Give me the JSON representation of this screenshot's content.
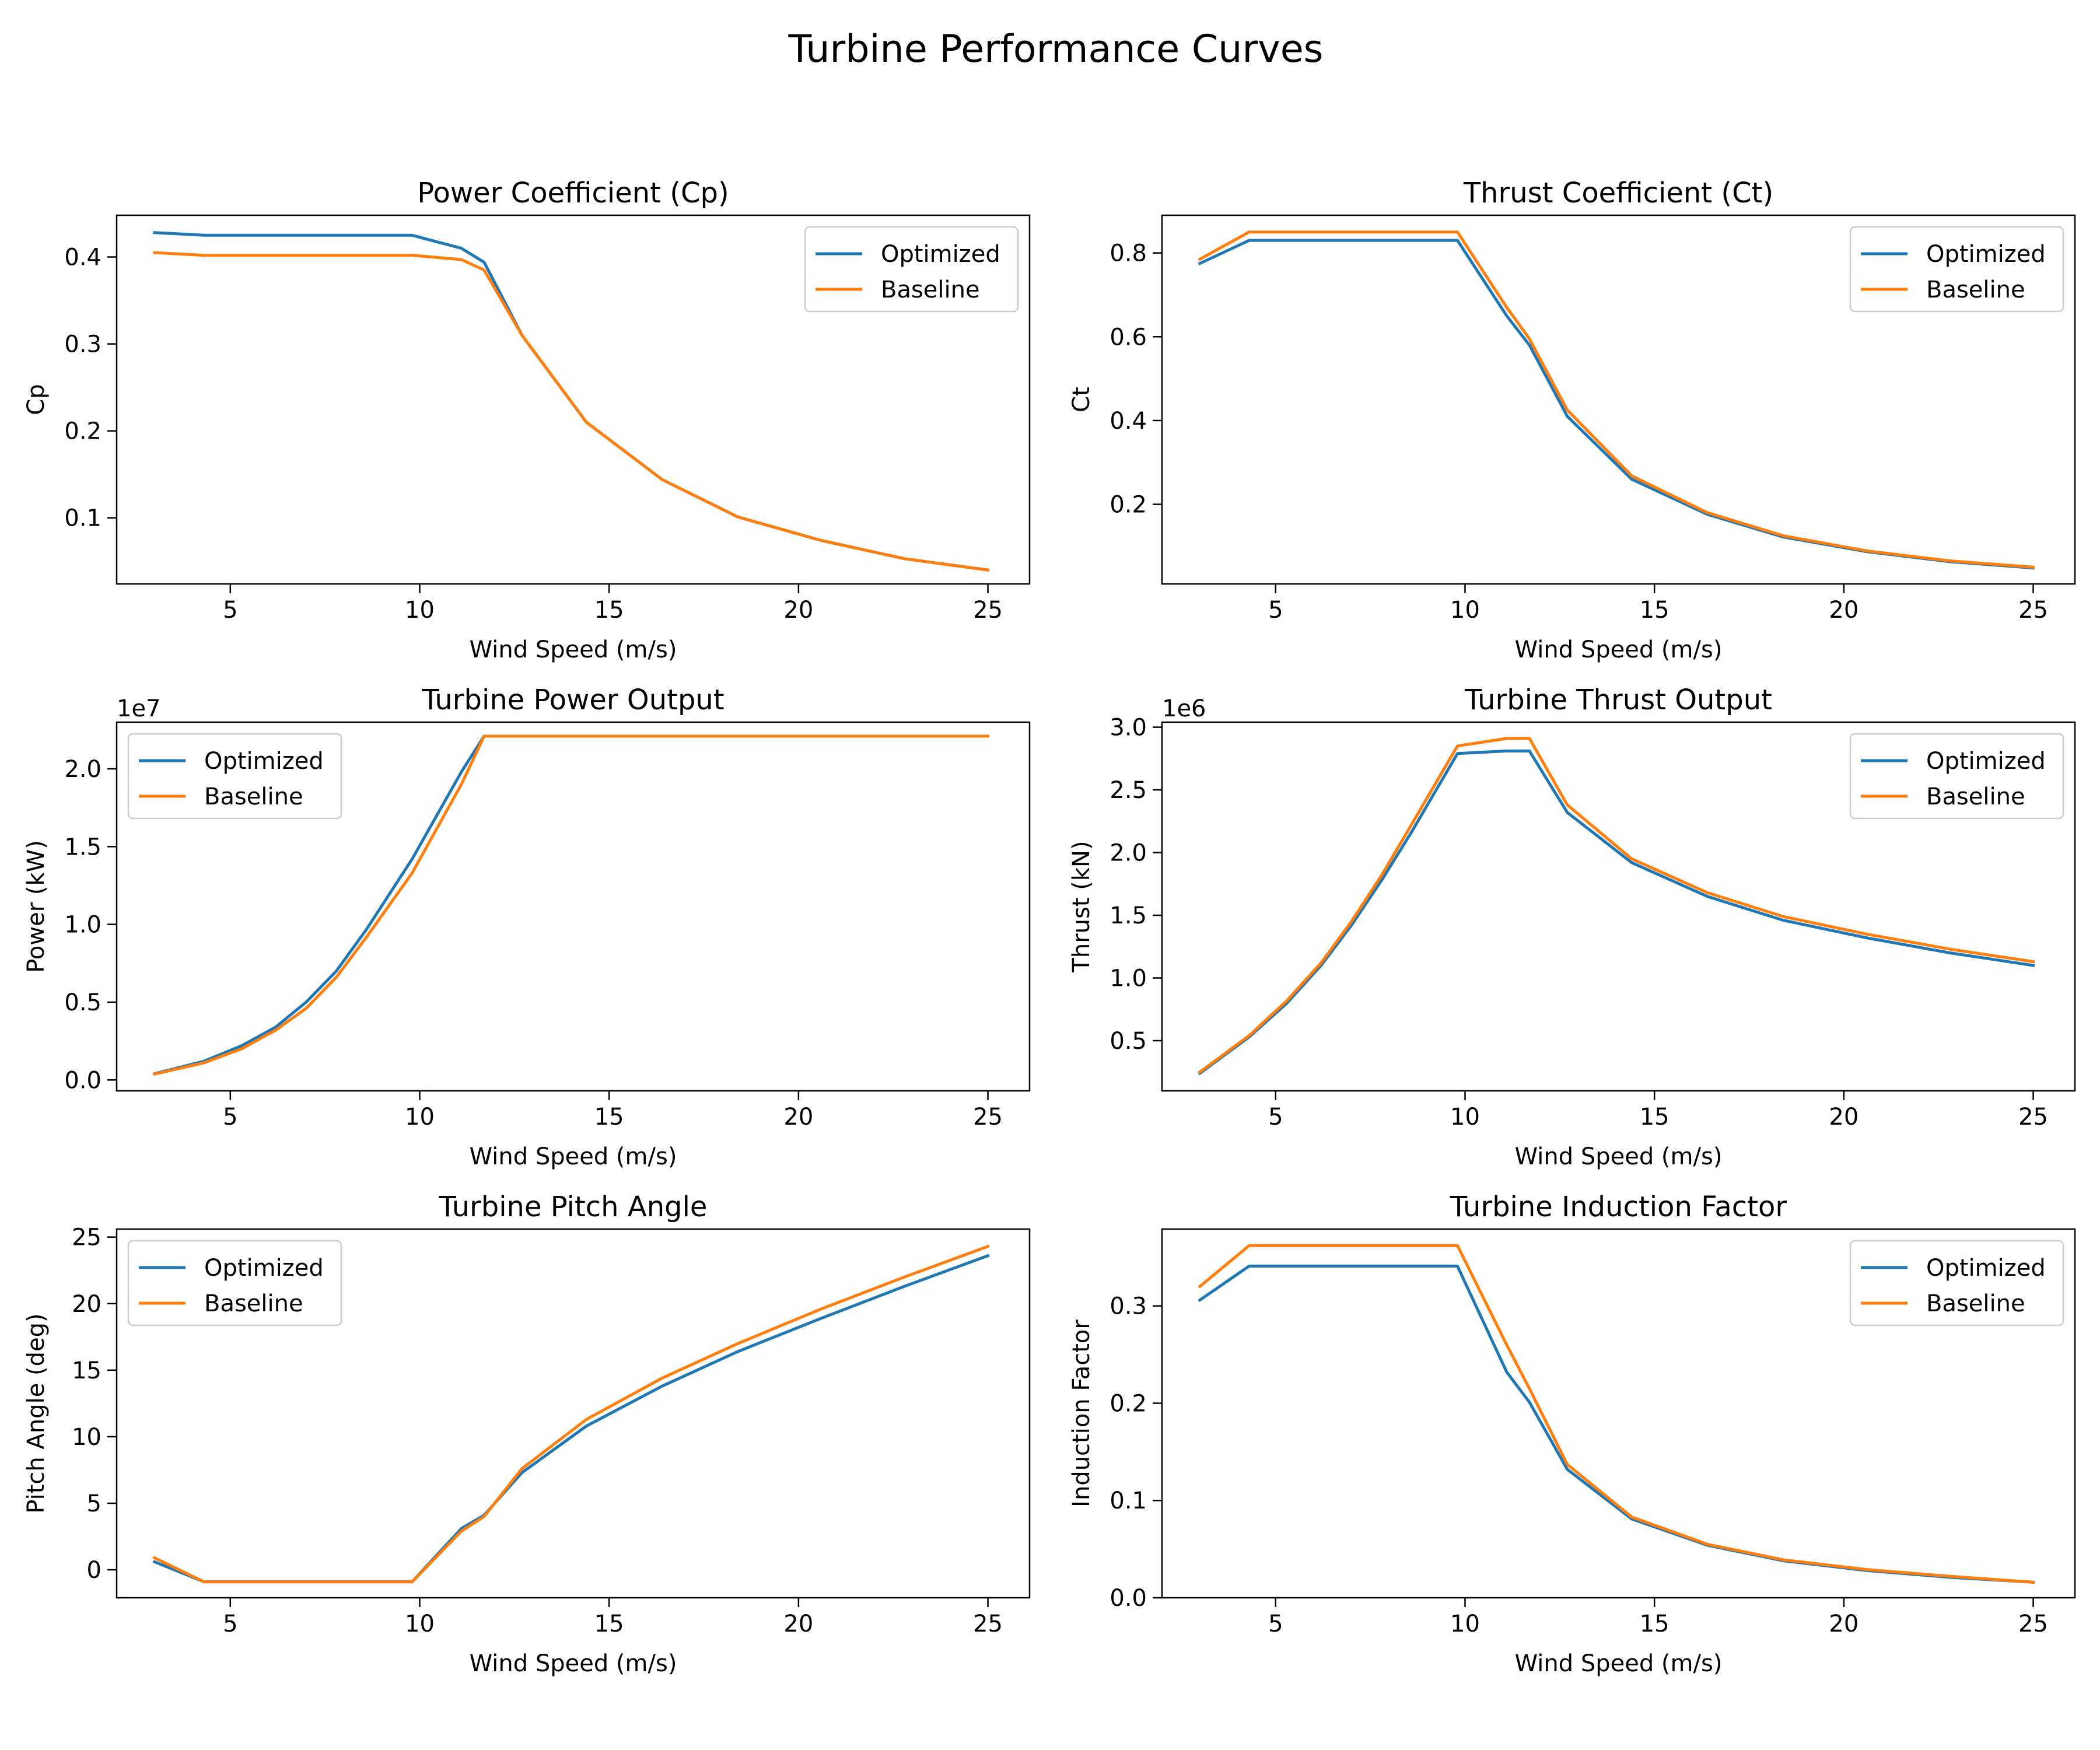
{
  "figure": {
    "title": "Turbine Performance Curves",
    "colors": {
      "optimized": "#1f77b4",
      "baseline": "#ff7f0e",
      "axes": "#000000",
      "background": "#ffffff"
    }
  },
  "chart_data": [
    {
      "type": "line",
      "title": "Power Coefficient (Cp)",
      "xlabel": "Wind Speed (m/s)",
      "ylabel": "Cp",
      "xlim": [
        2.0,
        26.1
      ],
      "ylim": [
        0.024,
        0.448
      ],
      "xticks": [
        5,
        10,
        15,
        20,
        25
      ],
      "xtick_labels": [
        "5",
        "10",
        "15",
        "20",
        "25"
      ],
      "yticks": [
        0.1,
        0.2,
        0.3,
        0.4
      ],
      "ytick_labels": [
        "0.1",
        "0.2",
        "0.3",
        "0.4"
      ],
      "offset_text": "",
      "legend": "upper right",
      "x": [
        3.0,
        4.3,
        5.3,
        6.2,
        7.0,
        7.8,
        8.6,
        9.8,
        11.1,
        11.7,
        12.7,
        14.4,
        16.4,
        18.4,
        20.6,
        22.8,
        25.0
      ],
      "series": [
        {
          "name": "Optimized",
          "color": "#1f77b4",
          "values": [
            0.428,
            0.425,
            0.425,
            0.425,
            0.425,
            0.425,
            0.425,
            0.425,
            0.41,
            0.394,
            0.31,
            0.21,
            0.144,
            0.101,
            0.074,
            0.053,
            0.04
          ]
        },
        {
          "name": "Baseline",
          "color": "#ff7f0e",
          "values": [
            0.405,
            0.402,
            0.402,
            0.402,
            0.402,
            0.402,
            0.402,
            0.402,
            0.397,
            0.385,
            0.31,
            0.21,
            0.144,
            0.101,
            0.074,
            0.053,
            0.04
          ]
        }
      ]
    },
    {
      "type": "line",
      "title": "Thrust Coefficient (Ct)",
      "xlabel": "Wind Speed (m/s)",
      "ylabel": "Ct",
      "xlim": [
        2.0,
        26.1
      ],
      "ylim": [
        0.01,
        0.89
      ],
      "xticks": [
        5,
        10,
        15,
        20,
        25
      ],
      "xtick_labels": [
        "5",
        "10",
        "15",
        "20",
        "25"
      ],
      "yticks": [
        0.2,
        0.4,
        0.6,
        0.8
      ],
      "ytick_labels": [
        "0.2",
        "0.4",
        "0.6",
        "0.8"
      ],
      "offset_text": "",
      "legend": "upper right",
      "x": [
        3.0,
        4.3,
        5.3,
        6.2,
        7.0,
        7.8,
        8.6,
        9.8,
        11.1,
        11.7,
        12.7,
        14.4,
        16.4,
        18.4,
        20.6,
        22.8,
        25.0
      ],
      "series": [
        {
          "name": "Optimized",
          "color": "#1f77b4",
          "values": [
            0.775,
            0.83,
            0.83,
            0.83,
            0.83,
            0.83,
            0.83,
            0.83,
            0.65,
            0.58,
            0.41,
            0.26,
            0.176,
            0.122,
            0.087,
            0.063,
            0.048
          ]
        },
        {
          "name": "Baseline",
          "color": "#ff7f0e",
          "values": [
            0.785,
            0.85,
            0.85,
            0.85,
            0.85,
            0.85,
            0.85,
            0.85,
            0.67,
            0.595,
            0.425,
            0.268,
            0.18,
            0.125,
            0.089,
            0.065,
            0.05
          ]
        }
      ]
    },
    {
      "type": "line",
      "title": "Turbine Power Output",
      "xlabel": "Wind Speed (m/s)",
      "ylabel": "Power (kW)",
      "xlim": [
        2.0,
        26.1
      ],
      "ylim": [
        -700000,
        23000000
      ],
      "xticks": [
        5,
        10,
        15,
        20,
        25
      ],
      "xtick_labels": [
        "5",
        "10",
        "15",
        "20",
        "25"
      ],
      "yticks": [
        0,
        5000000,
        10000000,
        15000000,
        20000000
      ],
      "ytick_labels": [
        "0.0",
        "0.5",
        "1.0",
        "1.5",
        "2.0"
      ],
      "offset_text": "1e7",
      "legend": "upper left",
      "x": [
        3.0,
        4.3,
        5.3,
        6.2,
        7.0,
        7.8,
        8.6,
        9.8,
        11.1,
        11.7,
        12.7,
        14.4,
        16.4,
        18.4,
        20.6,
        22.8,
        25.0
      ],
      "series": [
        {
          "name": "Optimized",
          "color": "#1f77b4",
          "values": [
            400000,
            1200000,
            2200000,
            3400000,
            5000000,
            7000000,
            9700000,
            14200000,
            19800000,
            22100000,
            22100000,
            22100000,
            22100000,
            22100000,
            22100000,
            22100000,
            22100000
          ]
        },
        {
          "name": "Baseline",
          "color": "#ff7f0e",
          "values": [
            380000,
            1100000,
            2000000,
            3200000,
            4600000,
            6600000,
            9200000,
            13300000,
            19000000,
            22100000,
            22100000,
            22100000,
            22100000,
            22100000,
            22100000,
            22100000,
            22100000
          ]
        }
      ]
    },
    {
      "type": "line",
      "title": "Turbine Thrust Output",
      "xlabel": "Wind Speed (m/s)",
      "ylabel": "Thrust (kN)",
      "xlim": [
        2.0,
        26.1
      ],
      "ylim": [
        100000,
        3040000
      ],
      "xticks": [
        5,
        10,
        15,
        20,
        25
      ],
      "xtick_labels": [
        "5",
        "10",
        "15",
        "20",
        "25"
      ],
      "yticks": [
        500000,
        1000000,
        1500000,
        2000000,
        2500000,
        3000000
      ],
      "ytick_labels": [
        "0.5",
        "1.0",
        "1.5",
        "2.0",
        "2.5",
        "3.0"
      ],
      "offset_text": "1e6",
      "legend": "upper right",
      "x": [
        3.0,
        4.3,
        5.3,
        6.2,
        7.0,
        7.8,
        8.6,
        9.8,
        11.1,
        11.7,
        12.7,
        14.4,
        16.4,
        18.4,
        20.6,
        22.8,
        25.0
      ],
      "series": [
        {
          "name": "Optimized",
          "color": "#1f77b4",
          "values": [
            240000,
            530000,
            800000,
            1100000,
            1420000,
            1780000,
            2170000,
            2790000,
            2810000,
            2810000,
            2320000,
            1920000,
            1650000,
            1460000,
            1320000,
            1200000,
            1100000
          ]
        },
        {
          "name": "Baseline",
          "color": "#ff7f0e",
          "values": [
            250000,
            540000,
            820000,
            1120000,
            1450000,
            1820000,
            2230000,
            2850000,
            2910000,
            2910000,
            2380000,
            1950000,
            1680000,
            1490000,
            1350000,
            1230000,
            1130000
          ]
        }
      ]
    },
    {
      "type": "line",
      "title": "Turbine Pitch Angle",
      "xlabel": "Wind Speed (m/s)",
      "ylabel": "Pitch Angle (deg)",
      "xlim": [
        2.0,
        26.1
      ],
      "ylim": [
        -2.1,
        25.6
      ],
      "xticks": [
        5,
        10,
        15,
        20,
        25
      ],
      "xtick_labels": [
        "5",
        "10",
        "15",
        "20",
        "25"
      ],
      "yticks": [
        0,
        5,
        10,
        15,
        20,
        25
      ],
      "ytick_labels": [
        "0",
        "5",
        "10",
        "15",
        "20",
        "25"
      ],
      "offset_text": "",
      "legend": "upper left",
      "x": [
        3.0,
        4.3,
        5.3,
        6.2,
        7.0,
        7.8,
        8.6,
        9.8,
        11.1,
        11.7,
        12.7,
        14.4,
        16.4,
        18.4,
        20.6,
        22.8,
        25.0
      ],
      "series": [
        {
          "name": "Optimized",
          "color": "#1f77b4",
          "values": [
            0.6,
            -0.9,
            -0.9,
            -0.9,
            -0.9,
            -0.9,
            -0.9,
            -0.9,
            3.1,
            4.1,
            7.3,
            10.8,
            13.8,
            16.4,
            18.9,
            21.3,
            23.6
          ]
        },
        {
          "name": "Baseline",
          "color": "#ff7f0e",
          "values": [
            0.9,
            -0.9,
            -0.9,
            -0.9,
            -0.9,
            -0.9,
            -0.9,
            -0.9,
            2.9,
            4.0,
            7.6,
            11.3,
            14.4,
            17.0,
            19.6,
            22.0,
            24.3
          ]
        }
      ]
    },
    {
      "type": "line",
      "title": "Turbine Induction Factor",
      "xlabel": "Wind Speed (m/s)",
      "ylabel": "Induction Factor",
      "xlim": [
        2.0,
        26.1
      ],
      "ylim": [
        0.0,
        0.379
      ],
      "xticks": [
        5,
        10,
        15,
        20,
        25
      ],
      "xtick_labels": [
        "5",
        "10",
        "15",
        "20",
        "25"
      ],
      "yticks": [
        0.0,
        0.1,
        0.2,
        0.3
      ],
      "ytick_labels": [
        "0.0",
        "0.1",
        "0.2",
        "0.3"
      ],
      "offset_text": "",
      "legend": "upper right",
      "x": [
        3.0,
        4.3,
        5.3,
        6.2,
        7.0,
        7.8,
        8.6,
        9.8,
        11.1,
        11.7,
        12.7,
        14.4,
        16.4,
        18.4,
        20.6,
        22.8,
        25.0
      ],
      "series": [
        {
          "name": "Optimized",
          "color": "#1f77b4",
          "values": [
            0.306,
            0.341,
            0.341,
            0.341,
            0.341,
            0.341,
            0.341,
            0.341,
            0.232,
            0.201,
            0.132,
            0.081,
            0.054,
            0.038,
            0.028,
            0.021,
            0.016
          ]
        },
        {
          "name": "Baseline",
          "color": "#ff7f0e",
          "values": [
            0.32,
            0.362,
            0.362,
            0.362,
            0.362,
            0.362,
            0.362,
            0.362,
            0.26,
            0.215,
            0.137,
            0.083,
            0.055,
            0.039,
            0.029,
            0.022,
            0.016
          ]
        }
      ]
    }
  ]
}
